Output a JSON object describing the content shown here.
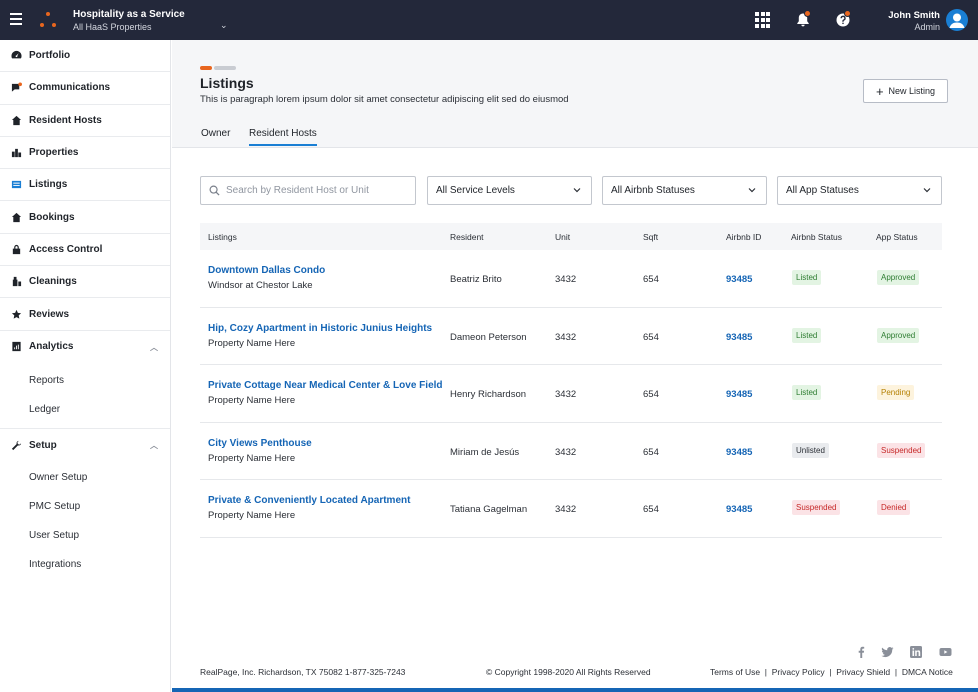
{
  "app": {
    "title": "Hospitality as a Service",
    "subtitle": "All HaaS Properties",
    "user_name": "John Smith",
    "user_role": "Admin"
  },
  "colors": {
    "accent": "#1a7fd4",
    "brand_orange": "#e8661f",
    "topbar": "#23283a",
    "link": "#1565b5"
  },
  "sidebar": {
    "items": [
      {
        "label": "Portfolio",
        "icon": "dashboard-icon"
      },
      {
        "label": "Communications",
        "icon": "chat-icon"
      },
      {
        "label": "Resident Hosts",
        "icon": "home-icon"
      },
      {
        "label": "Properties",
        "icon": "building-icon"
      },
      {
        "label": "Listings",
        "icon": "listing-icon",
        "active": true
      },
      {
        "label": "Bookings",
        "icon": "home-icon"
      },
      {
        "label": "Access Control",
        "icon": "lock-icon"
      },
      {
        "label": "Cleanings",
        "icon": "cleaning-icon"
      },
      {
        "label": "Reviews",
        "icon": "star-icon"
      },
      {
        "label": "Analytics",
        "icon": "analytics-icon"
      },
      {
        "label": "Setup",
        "icon": "wrench-icon"
      }
    ],
    "analytics_sub": [
      "Reports",
      "Ledger"
    ],
    "setup_sub": [
      "Owner Setup",
      "PMC Setup",
      "User Setup",
      "Integrations"
    ]
  },
  "header": {
    "title": "Listings",
    "description": "This is paragraph lorem ipsum dolor sit amet consectetur adipiscing elit sed do eiusmod",
    "new_button": "New Listing",
    "tabs": [
      "Owner",
      "Resident Hosts"
    ]
  },
  "filters": {
    "search_placeholder": "Search by Resident Host or Unit",
    "service_levels": "All Service Levels",
    "airbnb_statuses": "All Airbnb Statuses",
    "app_statuses": "All App Statuses"
  },
  "table": {
    "columns": [
      "Listings",
      "Resident",
      "Unit",
      "Sqft",
      "Airbnb ID",
      "Airbnb Status",
      "App Status"
    ],
    "rows": [
      {
        "title": "Downtown Dallas Condo",
        "subtitle": "Windsor at Chestor Lake",
        "resident": "Beatriz Brito",
        "unit": "3432",
        "sqft": "654",
        "airbnb_id": "93485",
        "airbnb_status": "Listed",
        "app_status": "Approved"
      },
      {
        "title": "Hip, Cozy Apartment in Historic Junius Heights",
        "subtitle": "Property Name Here",
        "resident": "Dameon Peterson",
        "unit": "3432",
        "sqft": "654",
        "airbnb_id": "93485",
        "airbnb_status": "Listed",
        "app_status": "Approved"
      },
      {
        "title": "Private Cottage Near Medical Center & Love Field",
        "subtitle": "Property Name Here",
        "resident": "Henry Richardson",
        "unit": "3432",
        "sqft": "654",
        "airbnb_id": "93485",
        "airbnb_status": "Listed",
        "app_status": "Pending"
      },
      {
        "title": "City Views Penthouse",
        "subtitle": "Property Name Here",
        "resident": "Miriam de Jesús",
        "unit": "3432",
        "sqft": "654",
        "airbnb_id": "93485",
        "airbnb_status": "Unlisted",
        "app_status": "Suspended"
      },
      {
        "title": "Private & Conveniently Located Apartment",
        "subtitle": "Property Name Here",
        "resident": "Tatiana Gagelman",
        "unit": "3432",
        "sqft": "654",
        "airbnb_id": "93485",
        "airbnb_status": "Suspended",
        "app_status": "Denied"
      }
    ]
  },
  "footer": {
    "address": "RealPage, Inc. Richardson, TX 75082 1-877-325-7243",
    "copyright": "© Copyright 1998-2020  All Rights Reserved",
    "links": [
      "Terms of Use",
      "Privacy Policy",
      "Privacy Shield",
      "DMCA Notice"
    ],
    "socials": [
      "facebook-icon",
      "twitter-icon",
      "linkedin-icon",
      "youtube-icon"
    ]
  }
}
